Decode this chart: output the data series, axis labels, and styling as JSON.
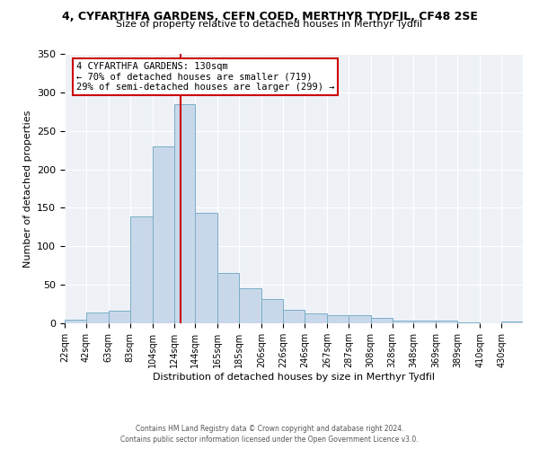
{
  "title": "4, CYFARTHFA GARDENS, CEFN COED, MERTHYR TYDFIL, CF48 2SE",
  "subtitle": "Size of property relative to detached houses in Merthyr Tydfil",
  "xlabel": "Distribution of detached houses by size in Merthyr Tydfil",
  "ylabel": "Number of detached properties",
  "bar_labels": [
    "22sqm",
    "42sqm",
    "63sqm",
    "83sqm",
    "104sqm",
    "124sqm",
    "144sqm",
    "165sqm",
    "185sqm",
    "206sqm",
    "226sqm",
    "246sqm",
    "267sqm",
    "287sqm",
    "308sqm",
    "328sqm",
    "348sqm",
    "369sqm",
    "389sqm",
    "410sqm",
    "430sqm"
  ],
  "bar_values": [
    5,
    14,
    16,
    139,
    230,
    285,
    144,
    65,
    46,
    32,
    18,
    13,
    10,
    10,
    7,
    4,
    4,
    3,
    1,
    0,
    2
  ],
  "bar_color": "#c8d8ea",
  "bar_edge_color": "#7aafc8",
  "property_line_x": 130,
  "property_line_color": "#cc0000",
  "annotation_line1": "4 CYFARTHFA GARDENS: 130sqm",
  "annotation_line2": "← 70% of detached houses are smaller (719)",
  "annotation_line3": "29% of semi-detached houses are larger (299) →",
  "annotation_box_edgecolor": "#cc0000",
  "ylim": [
    0,
    350
  ],
  "yticks": [
    0,
    50,
    100,
    150,
    200,
    250,
    300,
    350
  ],
  "footer_line1": "Contains HM Land Registry data © Crown copyright and database right 2024.",
  "footer_line2": "Contains public sector information licensed under the Open Government Licence v3.0.",
  "background_color": "#eef2f7",
  "bin_edges": [
    22,
    42,
    63,
    83,
    104,
    124,
    144,
    165,
    185,
    206,
    226,
    246,
    267,
    287,
    308,
    328,
    348,
    369,
    389,
    410,
    430,
    450
  ]
}
